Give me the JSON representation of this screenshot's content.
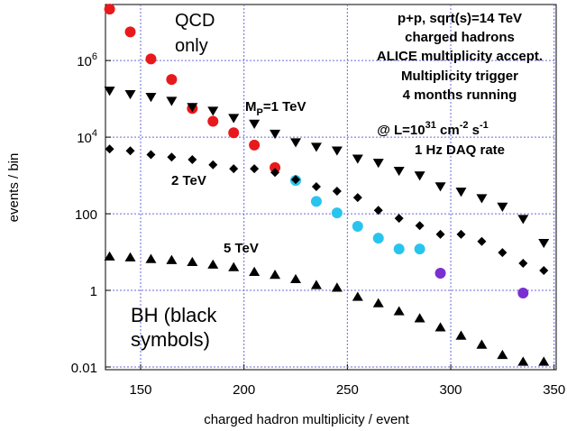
{
  "chart_data": {
    "type": "scatter",
    "xlabel": "charged hadron multiplicity / event",
    "ylabel": "events / bin",
    "xlim": [
      133,
      351
    ],
    "ylim": [
      0.0085,
      29000000
    ],
    "log_y": true,
    "grid": true,
    "xticks": [
      150,
      200,
      250,
      300,
      350
    ],
    "yticks": [
      0.01,
      1,
      100,
      {
        "value": 10000,
        "label": "10",
        "exponent": "4"
      },
      {
        "value": 1000000,
        "label": "10",
        "exponent": "6"
      }
    ],
    "series": [
      {
        "marker": "circle",
        "color": "#e8191c",
        "x": [
          135,
          145,
          155,
          165,
          175,
          185,
          195,
          205,
          215
        ],
        "values": [
          22000000,
          5600000,
          1100000,
          320000,
          56000,
          26000,
          13000,
          6200,
          1600
        ]
      },
      {
        "marker": "circle",
        "color": "#29c4ee",
        "x": [
          225,
          235,
          245,
          255,
          265,
          275,
          285
        ],
        "values": [
          740,
          210,
          105,
          47,
          23,
          12,
          12
        ]
      },
      {
        "marker": "circle",
        "color": "#7b2fd0",
        "x": [
          295,
          335
        ],
        "values": [
          2.8,
          0.85
        ]
      },
      {
        "marker": "triangle-down",
        "color": "#000000",
        "x": [
          135,
          145,
          155,
          165,
          175,
          185,
          195,
          205,
          215,
          225,
          235,
          245,
          255,
          265,
          275,
          285,
          295,
          305,
          315,
          325,
          335,
          345
        ],
        "values": [
          160000,
          130000,
          110000,
          87000,
          60000,
          48000,
          31000,
          22000,
          12000,
          7200,
          5500,
          4400,
          2700,
          2100,
          1300,
          980,
          510,
          370,
          250,
          150,
          72,
          17
        ]
      },
      {
        "marker": "diamond",
        "color": "#000000",
        "x": [
          135,
          145,
          155,
          165,
          175,
          185,
          195,
          205,
          215,
          225,
          235,
          245,
          255,
          265,
          275,
          285,
          295,
          305,
          315,
          325,
          335,
          345
        ],
        "values": [
          4900,
          4400,
          3500,
          3000,
          2600,
          1900,
          1500,
          1500,
          1200,
          780,
          510,
          390,
          265,
          123,
          76,
          49,
          29,
          29,
          19,
          9.7,
          5.1,
          3.3
        ]
      },
      {
        "marker": "triangle-up",
        "color": "#000000",
        "x": [
          135,
          145,
          155,
          165,
          175,
          185,
          195,
          205,
          215,
          225,
          235,
          245,
          255,
          265,
          275,
          285,
          295,
          305,
          315,
          325,
          335,
          345
        ],
        "values": [
          7.8,
          7.4,
          6.7,
          6.3,
          5.6,
          4.8,
          4.1,
          3.1,
          2.6,
          2.0,
          1.4,
          1.2,
          0.69,
          0.47,
          0.29,
          0.19,
          0.11,
          0.067,
          0.039,
          0.021,
          0.014,
          0.014
        ]
      }
    ],
    "annotations": [
      {
        "parts": [
          "QCD"
        ],
        "color": "#e8191c"
      },
      {
        "parts": [
          "only"
        ],
        "color": "#e8191c"
      },
      {
        "parts": [
          "p+p, sqrt(s)=14 TeV"
        ]
      },
      {
        "parts": [
          "charged hadrons"
        ]
      },
      {
        "parts": [
          "ALICE multiplicity accept."
        ]
      },
      {
        "parts": [
          "Multiplicity trigger"
        ]
      },
      {
        "parts": [
          "4 months running"
        ]
      },
      {
        "parts": [
          "@ L=10",
          "31",
          " cm",
          "-2",
          " s",
          "-1"
        ]
      },
      {
        "parts": [
          "1 Hz DAQ rate"
        ]
      },
      {
        "parts": [
          "M",
          "P",
          "=1 TeV"
        ]
      },
      {
        "parts": [
          "2 TeV"
        ]
      },
      {
        "parts": [
          "5 TeV"
        ]
      },
      {
        "parts": [
          "BH (black"
        ]
      },
      {
        "parts": [
          "symbols)"
        ]
      }
    ]
  }
}
